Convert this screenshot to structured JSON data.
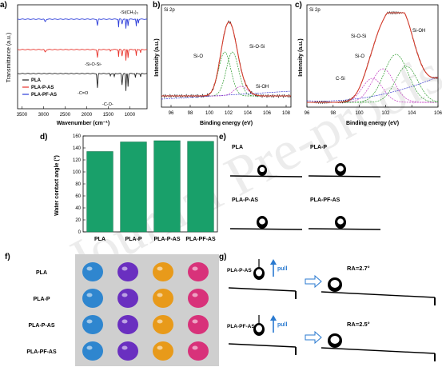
{
  "watermark": "Journal Pre-proofs",
  "colors": {
    "pla": "#222222",
    "plap_as": "#e8322a",
    "plapf_as": "#2a3bd9",
    "fit": "#d43a2a",
    "bar": "#19a06a",
    "sio": "#2a9a2a",
    "siosi": "#2a9a2a",
    "sioh": "#c238c2",
    "baseline": "#3a3ad0"
  },
  "panels": {
    "a": {
      "label": "a)",
      "ylabel": "Transmittance (a.u.)",
      "xlabel": "Wavenumber (cm⁻¹)",
      "xticks": [
        "3500",
        "3000",
        "2500",
        "2000",
        "1500",
        "1000"
      ],
      "legend": [
        "PLA",
        "PLA-P-AS",
        "PLA-PF-AS"
      ],
      "annotations": [
        "-Si(CH₃)₃",
        "-Si-O-Si-",
        "-C=O",
        "-C-O-"
      ]
    },
    "b": {
      "label": "b)",
      "title": "Si 2p",
      "ylabel": "Intensity (a.u.)",
      "xlabel": "Binding energy (eV)",
      "xticks": [
        "96",
        "98",
        "100",
        "102",
        "104",
        "106",
        "108"
      ],
      "annotations": [
        "Si-O",
        "Si-O-Si",
        "Si-OH"
      ]
    },
    "c": {
      "label": "c)",
      "title": "Si 2p",
      "ylabel": "Intensity (a.u.)",
      "xlabel": "Binding energy (eV)",
      "xticks": [
        "96",
        "98",
        "100",
        "102",
        "104",
        "106"
      ],
      "annotations": [
        "Si-O-Si",
        "Si-OH",
        "Si-O",
        "C-Si"
      ]
    },
    "d": {
      "label": "d)",
      "ylabel": "Water contact angle (°)",
      "yticks": [
        "0",
        "20",
        "40",
        "60",
        "80",
        "100",
        "120",
        "140",
        "160"
      ]
    },
    "e": {
      "label": "e)",
      "samples": [
        "PLA",
        "PLA-P",
        "PLA-P-AS",
        "PLA-PF-AS"
      ]
    },
    "f": {
      "label": "f)",
      "rows": [
        "PLA",
        "PLA-P",
        "PLA-P-AS",
        "PLA-PF-AS"
      ]
    },
    "g": {
      "label": "g)",
      "rows": [
        {
          "name": "PLA-P-AS",
          "action": "pull",
          "ra": "RA=2.7°"
        },
        {
          "name": "PLA-PF-AS",
          "action": "pull",
          "ra": "RA=2.5°"
        }
      ]
    }
  },
  "chart_data": [
    {
      "type": "line",
      "title": "",
      "xlabel": "Wavenumber (cm⁻¹)",
      "ylabel": "Transmittance (a.u.)",
      "xlim": [
        3600,
        600
      ],
      "x_reversed": true,
      "series": [
        {
          "name": "PLA"
        },
        {
          "name": "PLA-P-AS"
        },
        {
          "name": "PLA-PF-AS"
        }
      ]
    },
    {
      "type": "line",
      "title": "Si 2p",
      "xlabel": "Binding energy (eV)",
      "ylabel": "Intensity (a.u.)",
      "xlim": [
        95,
        108.5
      ],
      "series": [
        {
          "name": "Si-O",
          "center": 101.6
        },
        {
          "name": "Si-O-Si",
          "center": 102.4
        },
        {
          "name": "Si-OH",
          "center": 103.3
        }
      ]
    },
    {
      "type": "line",
      "title": "Si 2p",
      "xlabel": "Binding energy (eV)",
      "ylabel": "Intensity (a.u.)",
      "xlim": [
        96,
        106
      ],
      "series": [
        {
          "name": "C-Si",
          "center": 101.0
        },
        {
          "name": "Si-O",
          "center": 101.8
        },
        {
          "name": "Si-O-Si",
          "center": 102.8
        },
        {
          "name": "Si-OH",
          "center": 103.5
        }
      ]
    },
    {
      "type": "bar",
      "title": "",
      "xlabel": "",
      "ylabel": "Water contact angle (°)",
      "ylim": [
        0,
        160
      ],
      "categories": [
        "PLA",
        "PLA-P",
        "PLA-P-AS",
        "PLA-PF-AS"
      ],
      "values": [
        134,
        150,
        152,
        151
      ]
    }
  ],
  "droplet_colors": [
    [
      "#2f86cf",
      "#6a2fc0",
      "#e89a1a",
      "#d8327a"
    ],
    [
      "#2f86cf",
      "#6a2fc0",
      "#e89a1a",
      "#d8327a"
    ],
    [
      "#2f86cf",
      "#6a2fc0",
      "#e89a1a",
      "#d8327a"
    ],
    [
      "#2f86cf",
      "#6a2fc0",
      "#e89a1a",
      "#d8327a"
    ]
  ]
}
